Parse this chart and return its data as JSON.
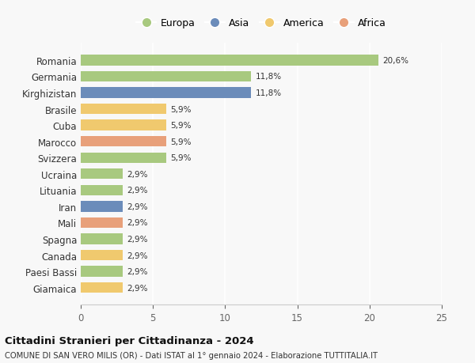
{
  "categories": [
    "Romania",
    "Germania",
    "Kirghizistan",
    "Brasile",
    "Cuba",
    "Marocco",
    "Svizzera",
    "Ucraina",
    "Lituania",
    "Iran",
    "Mali",
    "Spagna",
    "Canada",
    "Paesi Bassi",
    "Giamaica"
  ],
  "values": [
    20.6,
    11.8,
    11.8,
    5.9,
    5.9,
    5.9,
    5.9,
    2.9,
    2.9,
    2.9,
    2.9,
    2.9,
    2.9,
    2.9,
    2.9
  ],
  "labels": [
    "20,6%",
    "11,8%",
    "11,8%",
    "5,9%",
    "5,9%",
    "5,9%",
    "5,9%",
    "2,9%",
    "2,9%",
    "2,9%",
    "2,9%",
    "2,9%",
    "2,9%",
    "2,9%",
    "2,9%"
  ],
  "continents": [
    "Europa",
    "Europa",
    "Asia",
    "America",
    "America",
    "Africa",
    "Europa",
    "Europa",
    "Europa",
    "Asia",
    "Africa",
    "Europa",
    "America",
    "Europa",
    "America"
  ],
  "colors": {
    "Europa": "#a8c97f",
    "Asia": "#6b8cba",
    "America": "#f0c96e",
    "Africa": "#e8a07a"
  },
  "legend_order": [
    "Europa",
    "Asia",
    "America",
    "Africa"
  ],
  "xlim": [
    0,
    25
  ],
  "xticks": [
    0,
    5,
    10,
    15,
    20,
    25
  ],
  "title": "Cittadini Stranieri per Cittadinanza - 2024",
  "subtitle": "COMUNE DI SAN VERO MILIS (OR) - Dati ISTAT al 1° gennaio 2024 - Elaborazione TUTTITALIA.IT",
  "background_color": "#f8f8f8",
  "grid_color": "#ffffff",
  "bar_height": 0.65
}
